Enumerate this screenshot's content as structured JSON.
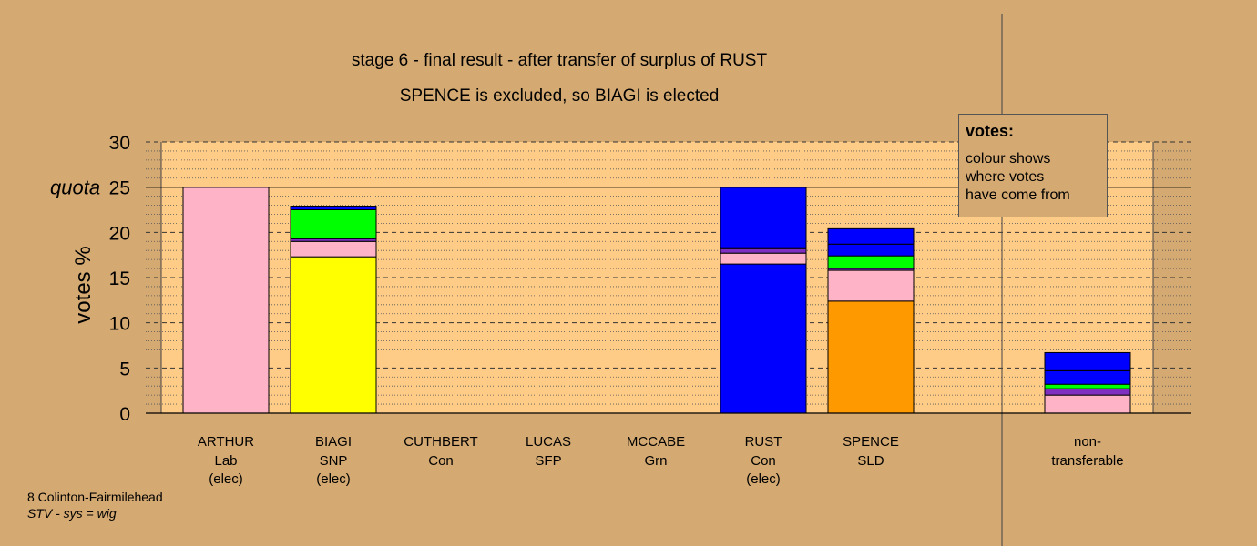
{
  "chart_data": {
    "type": "bar",
    "stacked": true,
    "title": "stage 6 - final result - after transfer of surplus of RUST",
    "subtitle": "SPENCE is excluded, so BIAGI is elected",
    "ylabel": "votes %",
    "ylim": [
      0,
      30
    ],
    "yticks": [
      0,
      5,
      10,
      15,
      20,
      25,
      30
    ],
    "quota": {
      "label": "quota",
      "value": 25
    },
    "grid": true,
    "colors": {
      "Lab": "#ffb3c6",
      "SNP": "#ffff00",
      "Con": "#0000ff",
      "SFP": "#7f2fbf",
      "Grn": "#00ff00",
      "SLD": "#ff9900"
    },
    "categories": [
      {
        "name": "ARTHUR",
        "party": "Lab",
        "status": "(elec)",
        "segments": [
          {
            "from": "Lab",
            "value": 25.0
          }
        ]
      },
      {
        "name": "BIAGI",
        "party": "SNP",
        "status": "(elec)",
        "segments": [
          {
            "from": "SNP",
            "value": 17.3
          },
          {
            "from": "Lab",
            "value": 1.7
          },
          {
            "from": "SFP",
            "value": 0.3
          },
          {
            "from": "Grn",
            "value": 3.2
          },
          {
            "from": "Con",
            "value": 0.4
          }
        ]
      },
      {
        "name": "CUTHBERT",
        "party": "Con",
        "status": "",
        "segments": []
      },
      {
        "name": "LUCAS",
        "party": "SFP",
        "status": "",
        "segments": []
      },
      {
        "name": "MCCABE",
        "party": "Grn",
        "status": "",
        "segments": []
      },
      {
        "name": "RUST",
        "party": "Con",
        "status": "(elec)",
        "segments": [
          {
            "from": "Con",
            "value": 16.5
          },
          {
            "from": "Lab",
            "value": 1.2
          },
          {
            "from": "SFP",
            "value": 0.5
          },
          {
            "from": "Grn",
            "value": 0.1
          },
          {
            "from": "Con",
            "value": 6.7
          }
        ]
      },
      {
        "name": "SPENCE",
        "party": "SLD",
        "status": "",
        "segments": [
          {
            "from": "SLD",
            "value": 12.4
          },
          {
            "from": "Lab",
            "value": 3.4
          },
          {
            "from": "SFP",
            "value": 0.2
          },
          {
            "from": "Grn",
            "value": 1.4
          },
          {
            "from": "Con",
            "value": 1.3
          },
          {
            "from": "Con",
            "value": 1.7
          }
        ]
      }
    ],
    "nontransferable": {
      "label_line1": "non-",
      "label_line2": "transferable",
      "segments": [
        {
          "from": "Lab",
          "value": 2.0
        },
        {
          "from": "SFP",
          "value": 0.7
        },
        {
          "from": "Grn",
          "value": 0.5
        },
        {
          "from": "Con",
          "value": 1.5
        },
        {
          "from": "Con",
          "value": 2.0
        }
      ]
    }
  },
  "legend": {
    "title": "votes:",
    "lines": [
      "colour shows",
      "where votes",
      "have come from"
    ]
  },
  "footer": {
    "ward": "8 Colinton-Fairmilehead",
    "system": "STV - sys = wig"
  }
}
